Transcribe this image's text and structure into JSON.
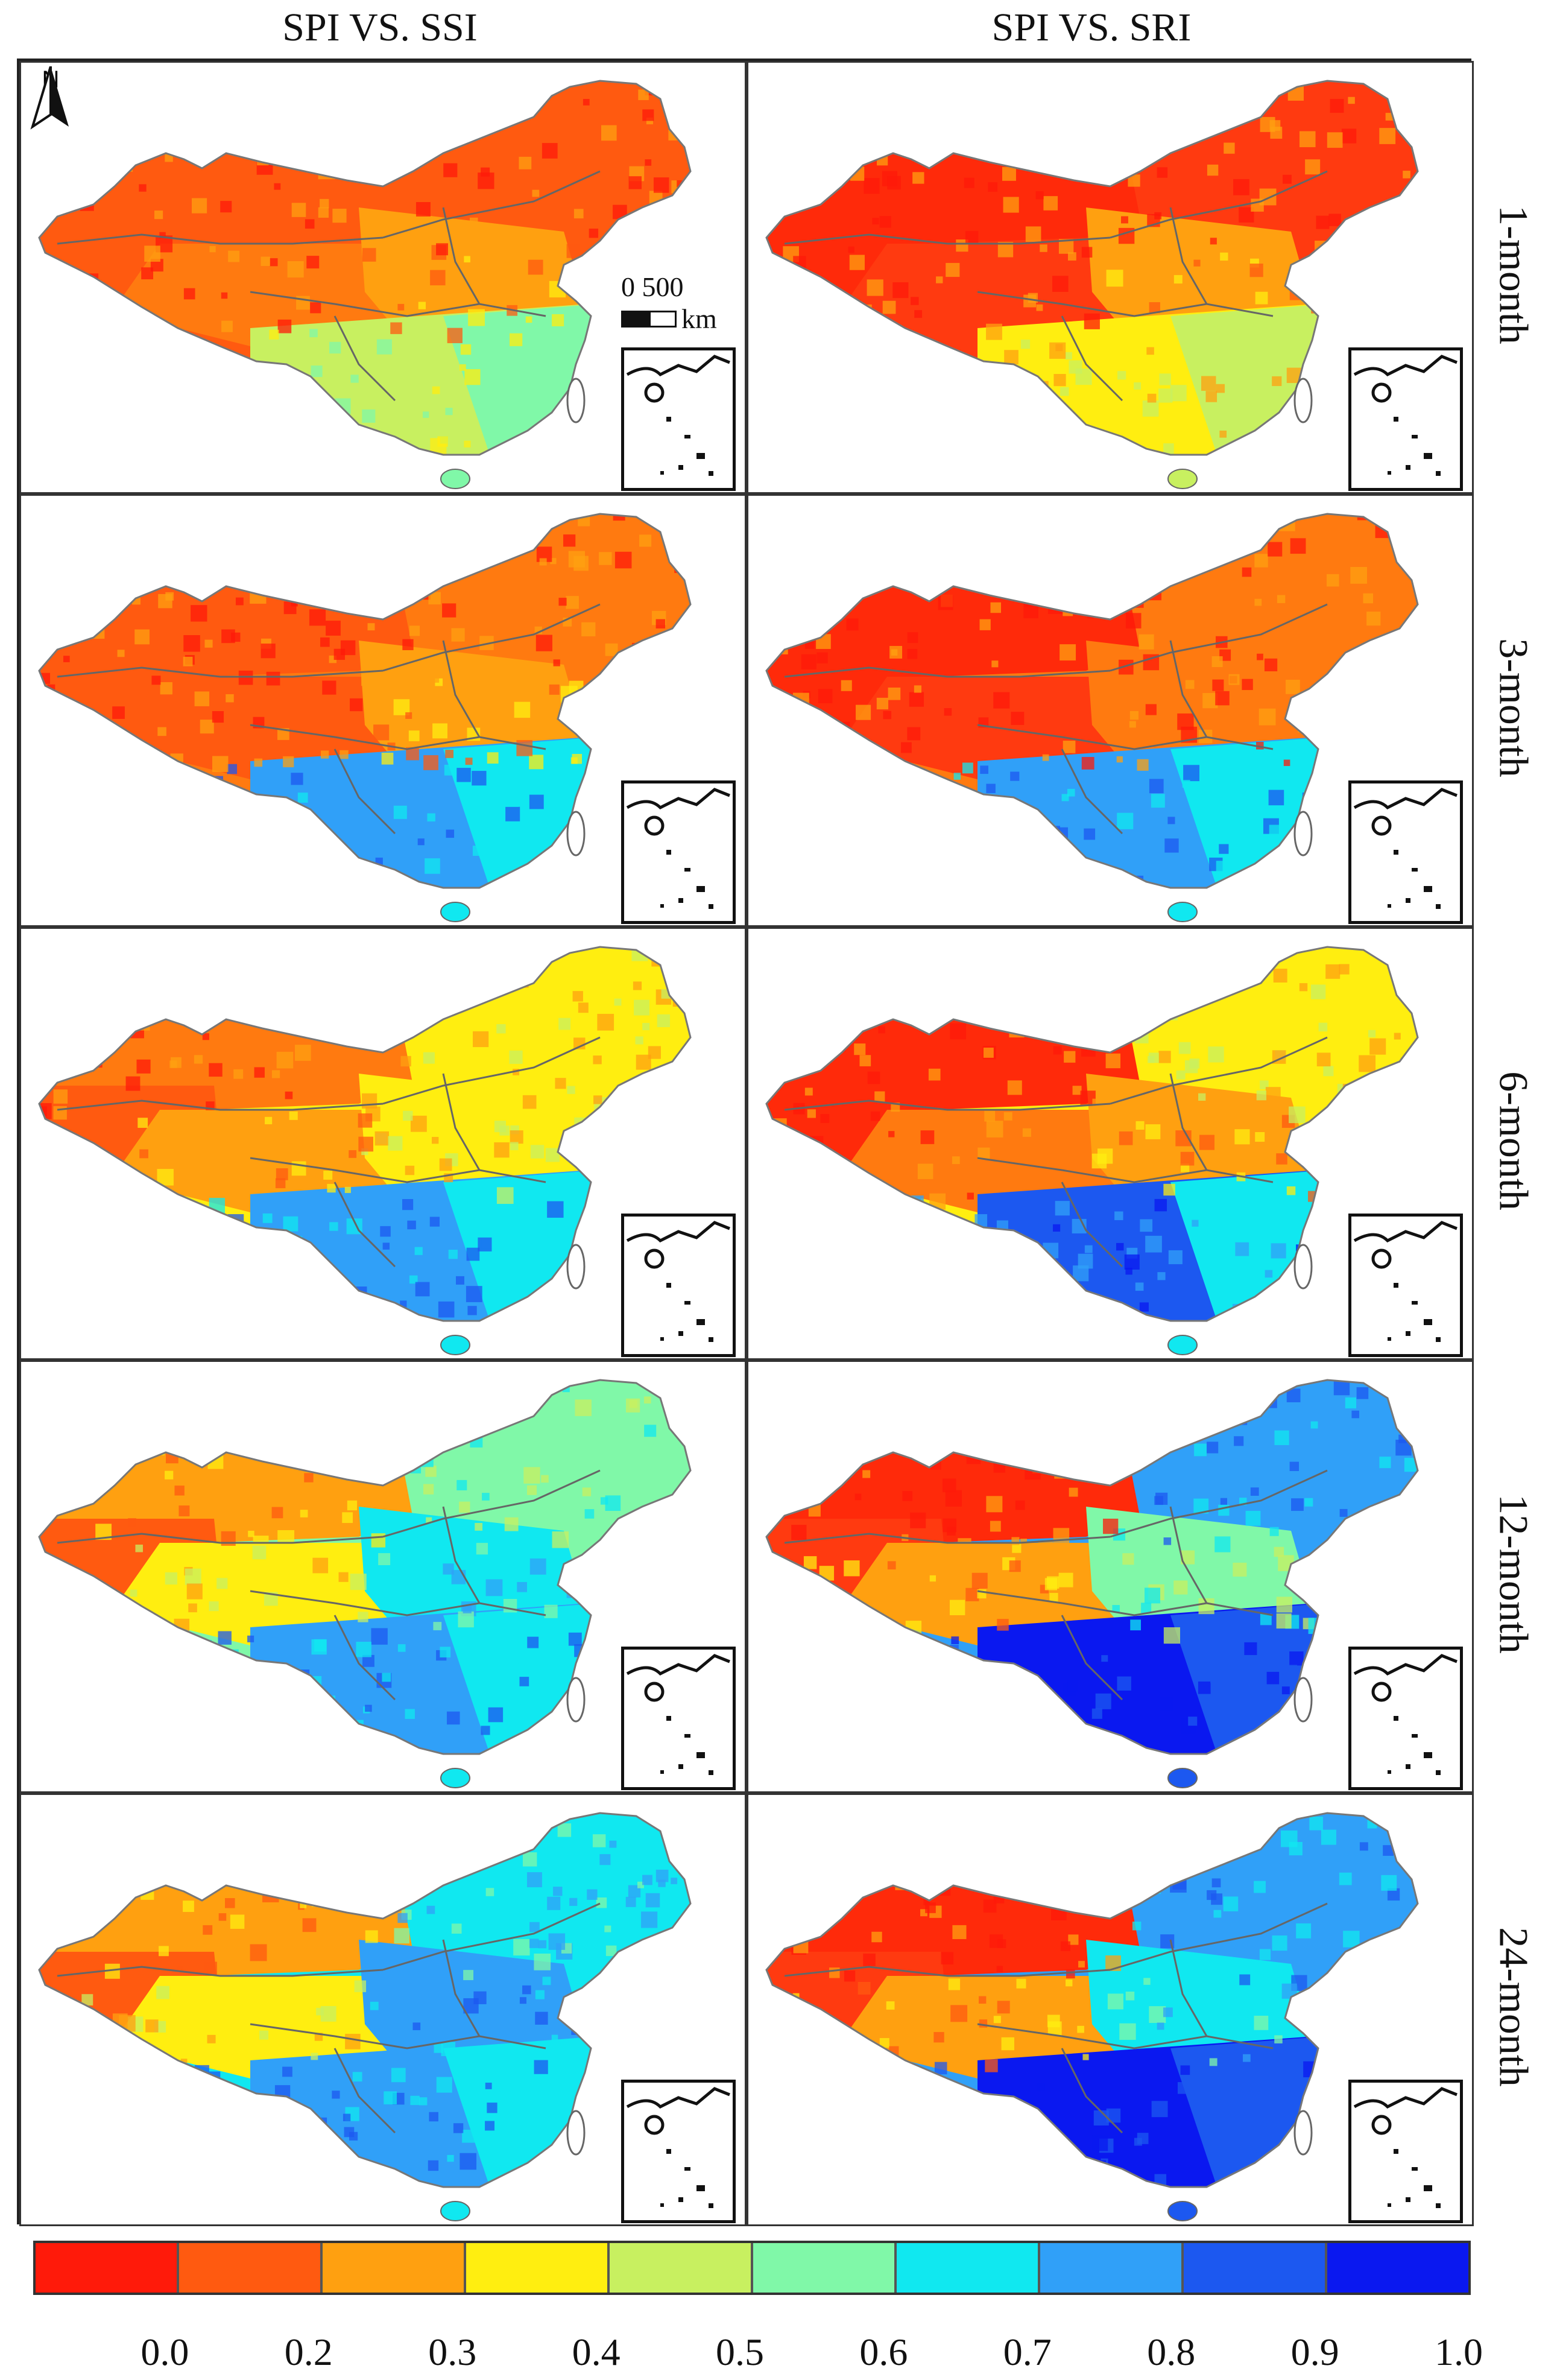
{
  "columns": [
    "SPI VS. SSI",
    "SPI VS. SRI"
  ],
  "rows": [
    "1-month",
    "3-month",
    "6-month",
    "12-month",
    "24-month"
  ],
  "north_label": "N",
  "scale": {
    "values": "0  500",
    "unit": "km"
  },
  "legend": {
    "colors": [
      "#ff1a0a",
      "#ff5a10",
      "#ffa010",
      "#ffee10",
      "#c8f060",
      "#80f8a8",
      "#10e8f0",
      "#30a0f8",
      "#1c58f0",
      "#0a18f0"
    ],
    "ticks": [
      "0.0",
      "0.2",
      "0.3",
      "0.4",
      "0.5",
      "0.6",
      "0.7",
      "0.8",
      "0.9",
      "1.0"
    ]
  },
  "panels": [
    [
      {
        "north": "#ff5a10",
        "northwest": "#ff5a10",
        "west": "#ff5a10",
        "tibet": "#ff7a10",
        "central": "#ffa010",
        "south": "#c8f060",
        "southeast": "#80f8a8"
      },
      {
        "north": "#ff3a10",
        "northwest": "#ff2a0a",
        "west": "#ff2a0a",
        "tibet": "#ff3a10",
        "central": "#ffa010",
        "south": "#ffee10",
        "southeast": "#c8f060"
      }
    ],
    [
      {
        "north": "#ff7a10",
        "northwest": "#ff5a10",
        "west": "#ff5a10",
        "tibet": "#ff5a10",
        "central": "#ffa010",
        "south": "#30a0f8",
        "southeast": "#10e8f0"
      },
      {
        "north": "#ff7a10",
        "northwest": "#ff2a0a",
        "west": "#ff2a0a",
        "tibet": "#ff3a10",
        "central": "#ff7a10",
        "south": "#30a0f8",
        "southeast": "#10e8f0"
      }
    ],
    [
      {
        "north": "#ffee10",
        "northwest": "#ff7a10",
        "west": "#ff5a10",
        "tibet": "#ffa010",
        "central": "#ffee10",
        "south": "#30a0f8",
        "southeast": "#10e8f0"
      },
      {
        "north": "#ffee10",
        "northwest": "#ff2a0a",
        "west": "#ff2a0a",
        "tibet": "#ff7a10",
        "central": "#ffa010",
        "south": "#1c58f0",
        "southeast": "#10e8f0"
      }
    ],
    [
      {
        "north": "#80f8a8",
        "northwest": "#ffa010",
        "west": "#ff5a10",
        "tibet": "#ffee10",
        "central": "#10e8f0",
        "south": "#30a0f8",
        "southeast": "#10e8f0"
      },
      {
        "north": "#30a0f8",
        "northwest": "#ff2a0a",
        "west": "#ff3a10",
        "tibet": "#ffa010",
        "central": "#80f8a8",
        "south": "#0a18f0",
        "southeast": "#1c58f0"
      }
    ],
    [
      {
        "north": "#10e8f0",
        "northwest": "#ffa010",
        "west": "#ff5a10",
        "tibet": "#ffee10",
        "central": "#30a0f8",
        "south": "#30a0f8",
        "southeast": "#10e8f0"
      },
      {
        "north": "#30a0f8",
        "northwest": "#ff2a0a",
        "west": "#ff3a10",
        "tibet": "#ffa010",
        "central": "#10e8f0",
        "south": "#0a18f0",
        "southeast": "#1c58f0"
      }
    ]
  ]
}
